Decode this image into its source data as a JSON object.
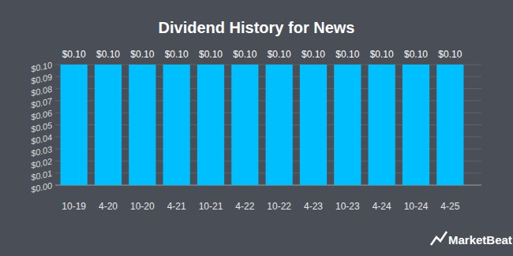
{
  "chart_data": {
    "type": "bar",
    "title": "Dividend History for News",
    "categories": [
      "10-19",
      "4-20",
      "10-20",
      "4-21",
      "10-21",
      "4-22",
      "10-22",
      "4-23",
      "10-23",
      "4-24",
      "10-24",
      "4-25"
    ],
    "values": [
      0.1,
      0.1,
      0.1,
      0.1,
      0.1,
      0.1,
      0.1,
      0.1,
      0.1,
      0.1,
      0.1,
      0.1
    ],
    "value_labels": [
      "$0.10",
      "$0.10",
      "$0.10",
      "$0.10",
      "$0.10",
      "$0.10",
      "$0.10",
      "$0.10",
      "$0.10",
      "$0.10",
      "$0.10",
      "$0.10"
    ],
    "color": "#00bfff",
    "ylim": [
      0,
      0.1
    ],
    "yticks": [
      {
        "value": 0,
        "label": "$0.00"
      },
      {
        "value": 0.01,
        "label": "$0.01"
      },
      {
        "value": 0.02,
        "label": "$0.02"
      },
      {
        "value": 0.03,
        "label": "$0.03"
      },
      {
        "value": 0.04,
        "label": "$0.04"
      },
      {
        "value": 0.05,
        "label": "$0.05"
      },
      {
        "value": 0.06,
        "label": "$0.06"
      },
      {
        "value": 0.07,
        "label": "$0.07"
      },
      {
        "value": 0.08,
        "label": "$0.08"
      },
      {
        "value": 0.09,
        "label": "$0.09"
      },
      {
        "value": 0.1,
        "label": "$0.10"
      }
    ],
    "grid": true,
    "data_labels": true,
    "annotations": [
      "MarketBeat"
    ]
  }
}
